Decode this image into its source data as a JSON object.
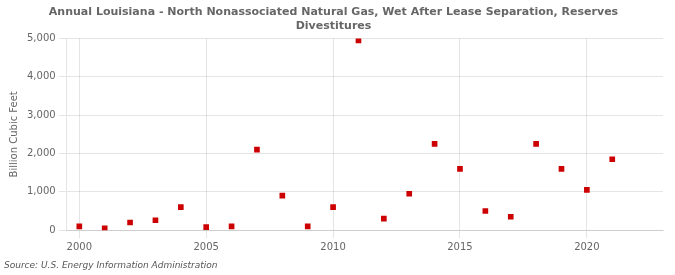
{
  "chart_data": {
    "type": "scatter",
    "title": "Annual Louisiana - North Nonassociated Natural Gas, Wet After Lease Separation, Reserves\nDivestitures",
    "ylabel": "Billion Cubic Feet",
    "annotations": [
      "Source: U.S. Energy Information Administration"
    ],
    "color": "#cc0000",
    "marker": "square",
    "x": [
      2000,
      2001,
      2002,
      2003,
      2004,
      2005,
      2006,
      2007,
      2008,
      2009,
      2010,
      2011,
      2012,
      2013,
      2014,
      2015,
      2016,
      2017,
      2018,
      2019,
      2020,
      2021
    ],
    "values": [
      100,
      50,
      200,
      260,
      600,
      80,
      100,
      2100,
      900,
      100,
      600,
      4950,
      300,
      950,
      2250,
      1600,
      500,
      350,
      2250,
      1600,
      1050,
      1850
    ],
    "xlim": [
      1999.5,
      2023
    ],
    "xticks": [
      2000,
      2005,
      2010,
      2015,
      2020
    ],
    "ylim": [
      0,
      5000
    ],
    "yticks": [
      0,
      {
        "value": 1000,
        "label": "1,000"
      },
      {
        "value": 2000,
        "label": "2,000"
      },
      {
        "value": 3000,
        "label": "3,000"
      },
      {
        "value": 4000,
        "label": "4,000"
      },
      {
        "value": 5000,
        "label": "5,000"
      }
    ],
    "grid": true
  }
}
